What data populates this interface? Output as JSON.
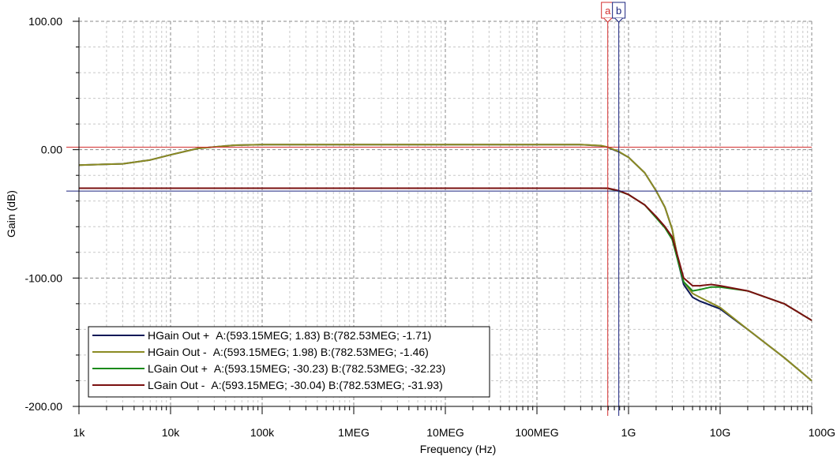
{
  "chart_data": {
    "type": "line",
    "xlabel": "Frequency (Hz)",
    "ylabel": "Gain (dB)",
    "x_scale": "log",
    "xlim": [
      1000,
      100000000000
    ],
    "ylim": [
      -200,
      100
    ],
    "x_ticks": [
      {
        "value": 1000,
        "label": "1k"
      },
      {
        "value": 10000,
        "label": "10k"
      },
      {
        "value": 100000,
        "label": "100k"
      },
      {
        "value": 1000000,
        "label": "1MEG"
      },
      {
        "value": 10000000,
        "label": "10MEG"
      },
      {
        "value": 100000000,
        "label": "100MEG"
      },
      {
        "value": 1000000000,
        "label": "1G"
      },
      {
        "value": 10000000000,
        "label": "10G"
      },
      {
        "value": 100000000000,
        "label": "100G"
      }
    ],
    "y_ticks": [
      {
        "value": 100,
        "label": "100.00"
      },
      {
        "value": 0,
        "label": "0.00"
      },
      {
        "value": -100,
        "label": "-100.00"
      },
      {
        "value": -200,
        "label": "-200.00"
      }
    ],
    "grid": true,
    "legend_position": "bottom-left",
    "cursors": [
      {
        "label": "a",
        "x": 593150000,
        "y": 1.98,
        "color": "#d32f2f"
      },
      {
        "label": "b",
        "x": 782530000,
        "y": -32.23,
        "color": "#1a237e"
      }
    ],
    "series": [
      {
        "name": "HGain Out +",
        "readout": "A:(593.15MEG; 1.83) B:(782.53MEG; -1.71)",
        "color": "#0d1957",
        "x": [
          1000,
          3000,
          6000,
          10000,
          20000,
          50000,
          100000,
          1000000,
          10000000,
          100000000,
          300000000,
          500000000,
          593150000,
          782530000,
          1000000000,
          1500000000,
          2000000000,
          2500000000,
          3000000000,
          3500000000,
          4000000000,
          5000000000,
          6000000000,
          10000000000,
          20000000000,
          50000000000,
          100000000000
        ],
        "y": [
          -12,
          -11,
          -8,
          -4,
          1,
          3.5,
          4,
          4,
          4,
          4,
          4,
          3,
          1.83,
          -1.71,
          -6,
          -18,
          -32,
          -45,
          -62,
          -88,
          -105,
          -115,
          -118,
          -124,
          -140,
          -162,
          -180
        ]
      },
      {
        "name": "HGain Out -",
        "readout": "A:(593.15MEG; 1.98) B:(782.53MEG; -1.46)",
        "color": "#8b8b23",
        "x": [
          1000,
          3000,
          6000,
          10000,
          20000,
          50000,
          100000,
          1000000,
          10000000,
          100000000,
          300000000,
          500000000,
          593150000,
          782530000,
          1000000000,
          1500000000,
          2000000000,
          2500000000,
          3000000000,
          3500000000,
          4000000000,
          5000000000,
          6000000000,
          10000000000,
          20000000000,
          50000000000,
          100000000000
        ],
        "y": [
          -12,
          -11,
          -8,
          -4,
          1,
          3.5,
          4,
          4,
          4,
          4,
          4,
          3.2,
          1.98,
          -1.46,
          -6,
          -18,
          -32,
          -45,
          -62,
          -87,
          -103,
          -112,
          -115,
          -123,
          -140,
          -162,
          -180
        ]
      },
      {
        "name": "LGain Out +",
        "readout": "A:(593.15MEG; -30.23) B:(782.53MEG; -32.23)",
        "color": "#1a8a1a",
        "x": [
          1000,
          10000,
          100000,
          1000000,
          10000000,
          100000000,
          300000000,
          500000000,
          593150000,
          782530000,
          1000000000,
          1500000000,
          2000000000,
          2500000000,
          3000000000,
          3500000000,
          4000000000,
          5000000000,
          6000000000,
          8000000000,
          10000000000,
          20000000000,
          50000000000,
          100000000000
        ],
        "y": [
          -30,
          -30,
          -30,
          -30,
          -30,
          -30,
          -30,
          -30,
          -30.23,
          -32.23,
          -35,
          -43,
          -53,
          -61,
          -70,
          -88,
          -103,
          -110,
          -109,
          -107,
          -107,
          -110,
          -120,
          -133
        ]
      },
      {
        "name": "LGain Out -",
        "readout": "A:(593.15MEG; -30.04) B:(782.53MEG; -31.93)",
        "color": "#7a1010",
        "x": [
          1000,
          10000,
          100000,
          1000000,
          10000000,
          100000000,
          300000000,
          500000000,
          593150000,
          782530000,
          1000000000,
          1500000000,
          2000000000,
          2500000000,
          3000000000,
          3500000000,
          4000000000,
          5000000000,
          6000000000,
          8000000000,
          10000000000,
          20000000000,
          50000000000,
          100000000000
        ],
        "y": [
          -30,
          -30,
          -30,
          -30,
          -30,
          -30,
          -30,
          -30,
          -30.04,
          -31.93,
          -35,
          -43,
          -52,
          -60,
          -68,
          -85,
          -100,
          -106,
          -106,
          -105,
          -106,
          -110,
          -120,
          -133
        ]
      }
    ]
  }
}
